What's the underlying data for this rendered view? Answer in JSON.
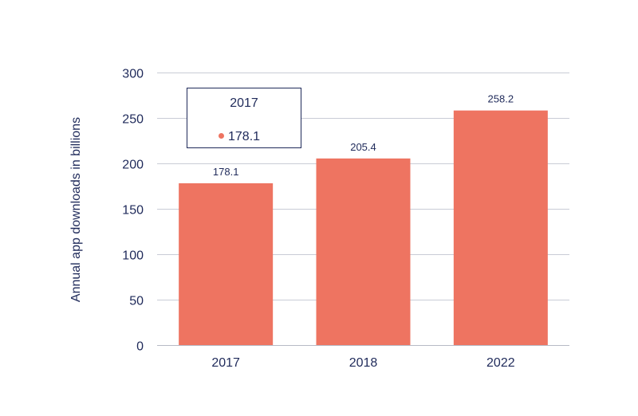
{
  "chart_data": {
    "type": "bar",
    "categories": [
      "2017",
      "2018",
      "2022"
    ],
    "values": [
      178.1,
      205.4,
      258.2
    ],
    "data_labels": [
      "178.1",
      "205.4",
      "258.2"
    ],
    "title": "",
    "xlabel": "",
    "ylabel": "Annual app downloads in billions",
    "ylim": [
      0,
      300
    ],
    "yticks": [
      0,
      50,
      100,
      150,
      200,
      250,
      300
    ],
    "ytick_labels": [
      "0",
      "50",
      "100",
      "150",
      "200",
      "250",
      "300"
    ],
    "grid": true,
    "legend": "none",
    "bar_color": "#ee7461",
    "tooltip": {
      "category": "2017",
      "value": "178.1",
      "marker_color": "#ee7461",
      "border_color": "#1f2a5a"
    }
  }
}
